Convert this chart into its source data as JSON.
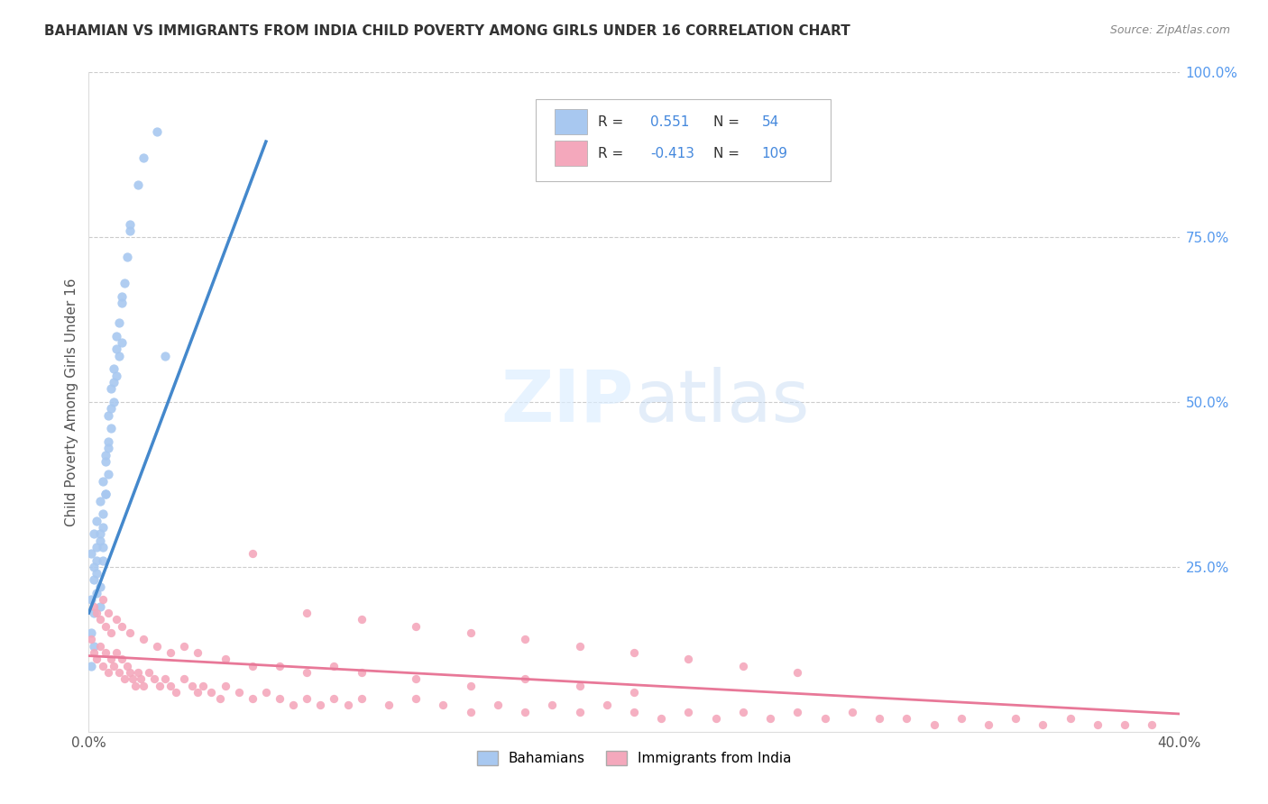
{
  "title": "BAHAMIAN VS IMMIGRANTS FROM INDIA CHILD POVERTY AMONG GIRLS UNDER 16 CORRELATION CHART",
  "source": "Source: ZipAtlas.com",
  "ylabel": "Child Poverty Among Girls Under 16",
  "xlim": [
    0.0,
    0.4
  ],
  "ylim": [
    0.0,
    1.0
  ],
  "blue_color": "#a8c8f0",
  "pink_color": "#f4a8bc",
  "blue_line_color": "#4488cc",
  "pink_line_color": "#e87898",
  "watermark_color": "#ddeeff",
  "R_blue": 0.551,
  "N_blue": 54,
  "R_pink": -0.413,
  "N_pink": 109,
  "blue_scatter_x": [
    0.001,
    0.002,
    0.002,
    0.003,
    0.003,
    0.003,
    0.004,
    0.004,
    0.004,
    0.005,
    0.005,
    0.005,
    0.006,
    0.006,
    0.007,
    0.007,
    0.007,
    0.008,
    0.008,
    0.009,
    0.009,
    0.01,
    0.01,
    0.011,
    0.011,
    0.012,
    0.012,
    0.013,
    0.014,
    0.015,
    0.001,
    0.002,
    0.002,
    0.003,
    0.003,
    0.004,
    0.004,
    0.005,
    0.005,
    0.006,
    0.006,
    0.007,
    0.008,
    0.009,
    0.01,
    0.012,
    0.015,
    0.018,
    0.02,
    0.025,
    0.001,
    0.002,
    0.028,
    0.001
  ],
  "blue_scatter_y": [
    0.27,
    0.3,
    0.25,
    0.28,
    0.32,
    0.24,
    0.35,
    0.29,
    0.22,
    0.38,
    0.31,
    0.26,
    0.42,
    0.36,
    0.48,
    0.43,
    0.39,
    0.52,
    0.46,
    0.55,
    0.5,
    0.6,
    0.54,
    0.62,
    0.57,
    0.65,
    0.59,
    0.68,
    0.72,
    0.76,
    0.2,
    0.23,
    0.18,
    0.21,
    0.26,
    0.19,
    0.3,
    0.33,
    0.28,
    0.36,
    0.41,
    0.44,
    0.49,
    0.53,
    0.58,
    0.66,
    0.77,
    0.83,
    0.87,
    0.91,
    0.1,
    0.13,
    0.57,
    0.15
  ],
  "pink_scatter_x": [
    0.001,
    0.002,
    0.003,
    0.004,
    0.005,
    0.006,
    0.007,
    0.008,
    0.009,
    0.01,
    0.011,
    0.012,
    0.013,
    0.014,
    0.015,
    0.016,
    0.017,
    0.018,
    0.019,
    0.02,
    0.022,
    0.024,
    0.026,
    0.028,
    0.03,
    0.032,
    0.035,
    0.038,
    0.04,
    0.042,
    0.045,
    0.048,
    0.05,
    0.055,
    0.06,
    0.065,
    0.07,
    0.075,
    0.08,
    0.085,
    0.09,
    0.095,
    0.1,
    0.11,
    0.12,
    0.13,
    0.14,
    0.15,
    0.16,
    0.17,
    0.18,
    0.19,
    0.2,
    0.21,
    0.22,
    0.23,
    0.24,
    0.25,
    0.26,
    0.27,
    0.28,
    0.29,
    0.3,
    0.31,
    0.32,
    0.33,
    0.34,
    0.35,
    0.36,
    0.37,
    0.38,
    0.39,
    0.002,
    0.003,
    0.004,
    0.005,
    0.006,
    0.007,
    0.008,
    0.01,
    0.012,
    0.015,
    0.02,
    0.025,
    0.03,
    0.035,
    0.04,
    0.05,
    0.06,
    0.07,
    0.08,
    0.09,
    0.1,
    0.12,
    0.14,
    0.16,
    0.18,
    0.2,
    0.06,
    0.08,
    0.1,
    0.12,
    0.14,
    0.16,
    0.18,
    0.2,
    0.22,
    0.24,
    0.26
  ],
  "pink_scatter_y": [
    0.14,
    0.12,
    0.11,
    0.13,
    0.1,
    0.12,
    0.09,
    0.11,
    0.1,
    0.12,
    0.09,
    0.11,
    0.08,
    0.1,
    0.09,
    0.08,
    0.07,
    0.09,
    0.08,
    0.07,
    0.09,
    0.08,
    0.07,
    0.08,
    0.07,
    0.06,
    0.08,
    0.07,
    0.06,
    0.07,
    0.06,
    0.05,
    0.07,
    0.06,
    0.05,
    0.06,
    0.05,
    0.04,
    0.05,
    0.04,
    0.05,
    0.04,
    0.05,
    0.04,
    0.05,
    0.04,
    0.03,
    0.04,
    0.03,
    0.04,
    0.03,
    0.04,
    0.03,
    0.02,
    0.03,
    0.02,
    0.03,
    0.02,
    0.03,
    0.02,
    0.03,
    0.02,
    0.02,
    0.01,
    0.02,
    0.01,
    0.02,
    0.01,
    0.02,
    0.01,
    0.01,
    0.01,
    0.19,
    0.18,
    0.17,
    0.2,
    0.16,
    0.18,
    0.15,
    0.17,
    0.16,
    0.15,
    0.14,
    0.13,
    0.12,
    0.13,
    0.12,
    0.11,
    0.1,
    0.1,
    0.09,
    0.1,
    0.09,
    0.08,
    0.07,
    0.08,
    0.07,
    0.06,
    0.27,
    0.18,
    0.17,
    0.16,
    0.15,
    0.14,
    0.13,
    0.12,
    0.11,
    0.1,
    0.09
  ],
  "blue_line_x": [
    0.0,
    0.065
  ],
  "blue_line_y_intercept": 0.18,
  "blue_line_slope": 11.0,
  "pink_line_x": [
    0.0,
    0.4
  ],
  "pink_line_y_intercept": 0.115,
  "pink_line_slope": -0.22
}
